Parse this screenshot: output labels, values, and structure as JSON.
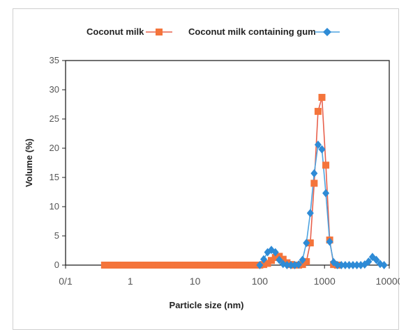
{
  "chart_data": {
    "type": "line",
    "xlabel": "Particle size (nm)",
    "ylabel": "Volume (%)",
    "x_scale": "log",
    "x_ticks": [
      {
        "value": 0.1,
        "label": "0/1"
      },
      {
        "value": 1,
        "label": "1"
      },
      {
        "value": 10,
        "label": "10"
      },
      {
        "value": 100,
        "label": "100"
      },
      {
        "value": 1000,
        "label": "1000"
      },
      {
        "value": 10000,
        "label": "10000"
      }
    ],
    "xlim": [
      0.1,
      10000
    ],
    "ylim": [
      0,
      35
    ],
    "y_ticks": [
      "0",
      "5",
      "10",
      "15",
      "20",
      "25",
      "30",
      "35"
    ],
    "grid": false,
    "legend": "top",
    "series": [
      {
        "name": "Coconut milk",
        "color": "#f4743b",
        "line_color": "#e8604c",
        "marker": "square",
        "x": [
          0.4,
          0.46,
          0.52,
          0.6,
          0.69,
          0.79,
          0.91,
          1.05,
          1.2,
          1.38,
          1.58,
          1.82,
          2.09,
          2.4,
          2.75,
          3.16,
          3.63,
          4.17,
          4.79,
          5.5,
          6.31,
          7.24,
          8.32,
          9.55,
          11.0,
          12.6,
          14.5,
          16.6,
          19.1,
          21.9,
          25.1,
          28.8,
          33.1,
          38.0,
          43.7,
          50.1,
          57.5,
          66.1,
          75.9,
          87.1,
          100,
          115,
          132,
          151,
          174,
          200,
          229,
          263,
          302,
          347,
          398,
          457,
          525,
          603,
          692,
          794,
          912,
          1047,
          1202,
          1380,
          1585
        ],
        "y": [
          0,
          0,
          0,
          0,
          0,
          0,
          0,
          0,
          0,
          0,
          0,
          0,
          0,
          0,
          0,
          0,
          0,
          0,
          0,
          0,
          0,
          0,
          0,
          0,
          0,
          0,
          0,
          0,
          0,
          0,
          0,
          0,
          0,
          0,
          0,
          0,
          0,
          0,
          0,
          0,
          0,
          0.1,
          0.3,
          0.8,
          1.3,
          1.5,
          1.0,
          0.4,
          0.1,
          0,
          0,
          0.1,
          0.6,
          3.8,
          14.0,
          26.3,
          28.7,
          17.1,
          4.3,
          0.1,
          0
        ]
      },
      {
        "name": "Coconut milk containing gum",
        "color": "#2e8bd6",
        "line_color": "#4da3e0",
        "marker": "diamond",
        "x": [
          100,
          115,
          132,
          151,
          174,
          200,
          229,
          263,
          302,
          347,
          398,
          457,
          525,
          603,
          692,
          794,
          912,
          1047,
          1202,
          1380,
          1585,
          1820,
          2090,
          2400,
          2750,
          3160,
          3630,
          4170,
          4790,
          5500,
          6310,
          7240,
          8320
        ],
        "y": [
          0,
          1.0,
          2.2,
          2.6,
          2.2,
          0.9,
          0.2,
          0,
          0,
          0,
          0.1,
          0.9,
          3.8,
          8.9,
          15.7,
          20.6,
          19.8,
          12.3,
          4.0,
          0.5,
          0,
          0,
          0,
          0,
          0,
          0,
          0,
          0.1,
          0.6,
          1.4,
          0.9,
          0.2,
          0
        ]
      }
    ]
  }
}
